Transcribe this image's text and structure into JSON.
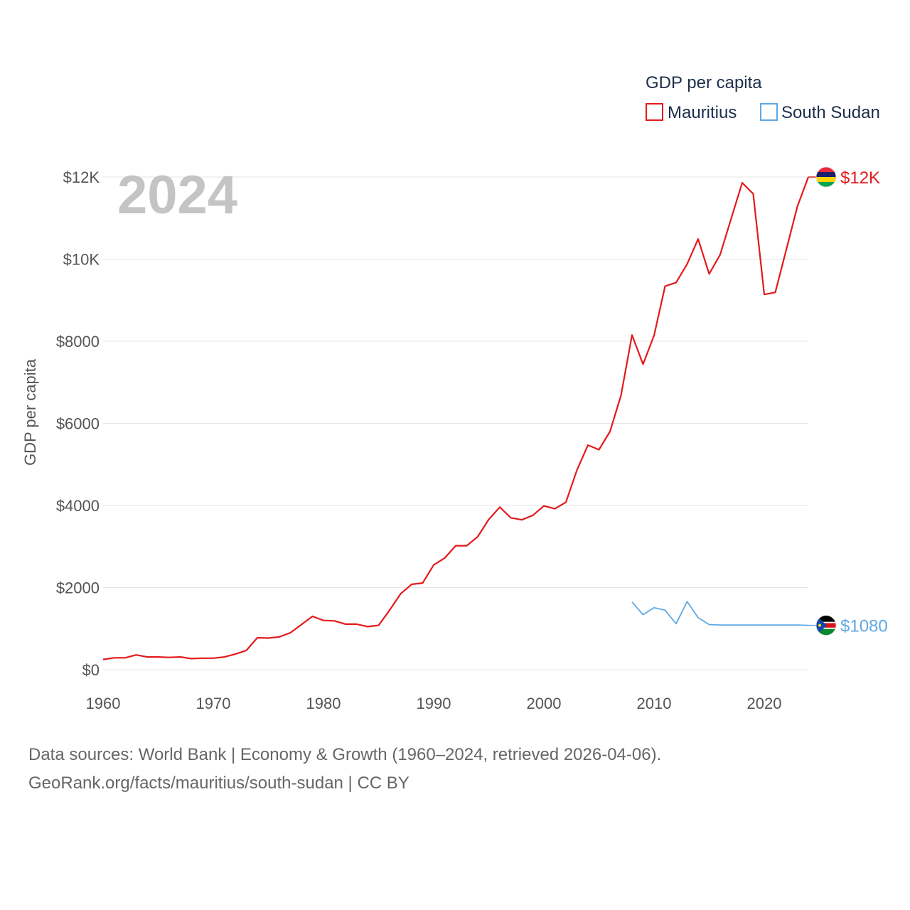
{
  "chart_data": {
    "type": "line",
    "year_label": "2024",
    "ylabel": "GDP per capita",
    "xlim": [
      1960,
      2024
    ],
    "ylim": [
      0,
      12000
    ],
    "x_ticks": [
      1960,
      1970,
      1980,
      1990,
      2000,
      2010,
      2020
    ],
    "x_tick_labels": [
      "1960",
      "1970",
      "1980",
      "1990",
      "2000",
      "2010",
      "2020"
    ],
    "y_ticks": [
      0,
      2000,
      4000,
      6000,
      8000,
      10000,
      12000
    ],
    "y_tick_labels": [
      "$0",
      "$2000",
      "$4000",
      "$6000",
      "$8000",
      "$10K",
      "$12K"
    ],
    "legend": {
      "title": "GDP per capita",
      "position": "top-right"
    },
    "series": [
      {
        "name": "Mauritius",
        "color": "#e41a1c",
        "end_label": "$12K",
        "flag_colors": [
          "#ea2839",
          "#1a206d",
          "#ffd500",
          "#00a551"
        ],
        "x": [
          1960,
          1961,
          1962,
          1963,
          1964,
          1965,
          1966,
          1967,
          1968,
          1969,
          1970,
          1971,
          1972,
          1973,
          1974,
          1975,
          1976,
          1977,
          1978,
          1979,
          1980,
          1981,
          1982,
          1983,
          1984,
          1985,
          1986,
          1987,
          1988,
          1989,
          1990,
          1991,
          1992,
          1993,
          1994,
          1995,
          1996,
          1997,
          1998,
          1999,
          2000,
          2001,
          2002,
          2003,
          2004,
          2005,
          2006,
          2007,
          2008,
          2009,
          2010,
          2011,
          2012,
          2013,
          2014,
          2015,
          2016,
          2017,
          2018,
          2019,
          2020,
          2021,
          2022,
          2023,
          2024
        ],
        "values": [
          250,
          290,
          290,
          360,
          310,
          310,
          300,
          310,
          270,
          280,
          280,
          310,
          380,
          470,
          780,
          770,
          800,
          900,
          1100,
          1300,
          1200,
          1190,
          1110,
          1110,
          1050,
          1080,
          1450,
          1850,
          2080,
          2110,
          2550,
          2720,
          3020,
          3020,
          3240,
          3660,
          3960,
          3700,
          3650,
          3760,
          3990,
          3920,
          4080,
          4860,
          5470,
          5360,
          5800,
          6680,
          8150,
          7440,
          8140,
          9340,
          9430,
          9880,
          10490,
          9640,
          10110,
          10990,
          11860,
          11590,
          9140,
          9190,
          10230,
          11280,
          12000
        ]
      },
      {
        "name": "South Sudan",
        "color": "#5fa8e3",
        "end_label": "$1080",
        "flag_colors": [
          "#000000",
          "#ffffff",
          "#da121a",
          "#078930",
          "#0f47af"
        ],
        "x": [
          2008,
          2009,
          2010,
          2011,
          2012,
          2013,
          2014,
          2015,
          2016,
          2017,
          2018,
          2019,
          2020,
          2021,
          2022,
          2023,
          2024
        ],
        "values": [
          1650,
          1340,
          1510,
          1450,
          1120,
          1660,
          1270,
          1100,
          1090,
          1090,
          1090,
          1090,
          1090,
          1090,
          1090,
          1090,
          1080
        ]
      }
    ]
  },
  "footer": {
    "line1": "Data sources: World Bank | Economy & Growth (1960–2024, retrieved 2026-04-06).",
    "line2": "GeoRank.org/facts/mauritius/south-sudan | CC BY"
  }
}
